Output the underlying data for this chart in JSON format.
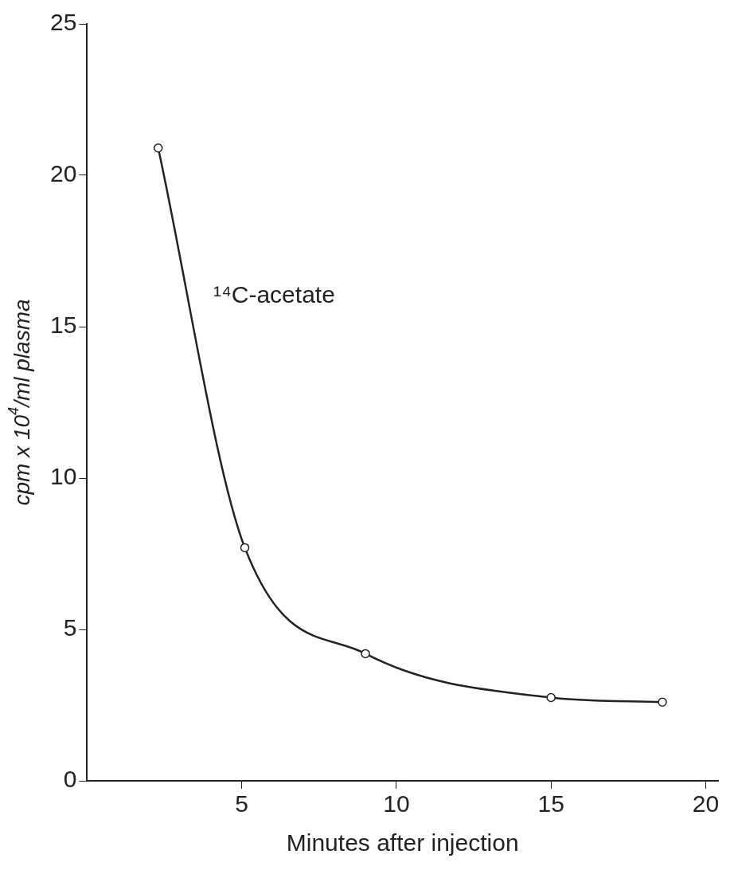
{
  "chart_data": {
    "type": "line",
    "xlabel": "Minutes after injection",
    "ylabel": "cpm x 10$^{4}$/ml plasma",
    "x": [
      2.3,
      5.1,
      9.0,
      15.0,
      18.6
    ],
    "series": [
      {
        "color": "#222222",
        "values": [
          20.9,
          7.7,
          4.2,
          2.75,
          2.6
        ]
      }
    ],
    "xlim": [
      0,
      20.4
    ],
    "xticks": [
      5,
      10,
      15,
      20
    ],
    "ylim": [
      0,
      25
    ],
    "yticks": [
      0,
      5,
      10,
      15,
      20,
      25
    ],
    "grid": false,
    "legend": false,
    "marker": "circle",
    "line_style": "solid",
    "annotations": [
      "¹⁴C-acetate"
    ]
  }
}
